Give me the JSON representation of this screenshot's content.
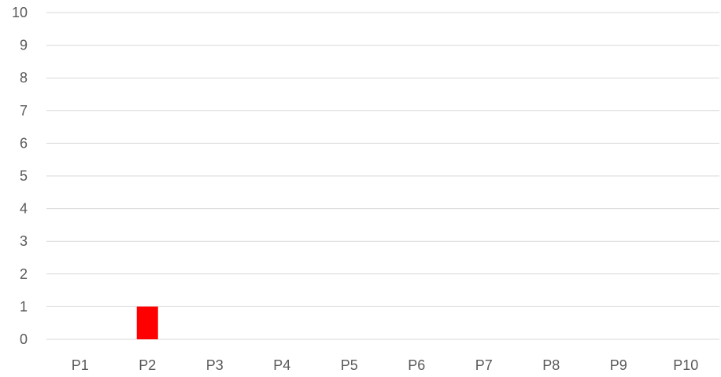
{
  "chart_data": {
    "type": "bar",
    "categories": [
      "P1",
      "P2",
      "P3",
      "P4",
      "P5",
      "P6",
      "P7",
      "P8",
      "P9",
      "P10"
    ],
    "series": [
      {
        "values": [
          0,
          1,
          0,
          0,
          0,
          0,
          0,
          0,
          0,
          0
        ],
        "color": "#ff0000"
      }
    ],
    "ylim": [
      0,
      10
    ],
    "yticks": [
      0,
      1,
      2,
      3,
      4,
      5,
      6,
      7,
      8,
      9,
      10
    ],
    "grid": true,
    "gridline_color": "#d9d9d9",
    "tick_label_color": "#595959",
    "legend": "none"
  }
}
